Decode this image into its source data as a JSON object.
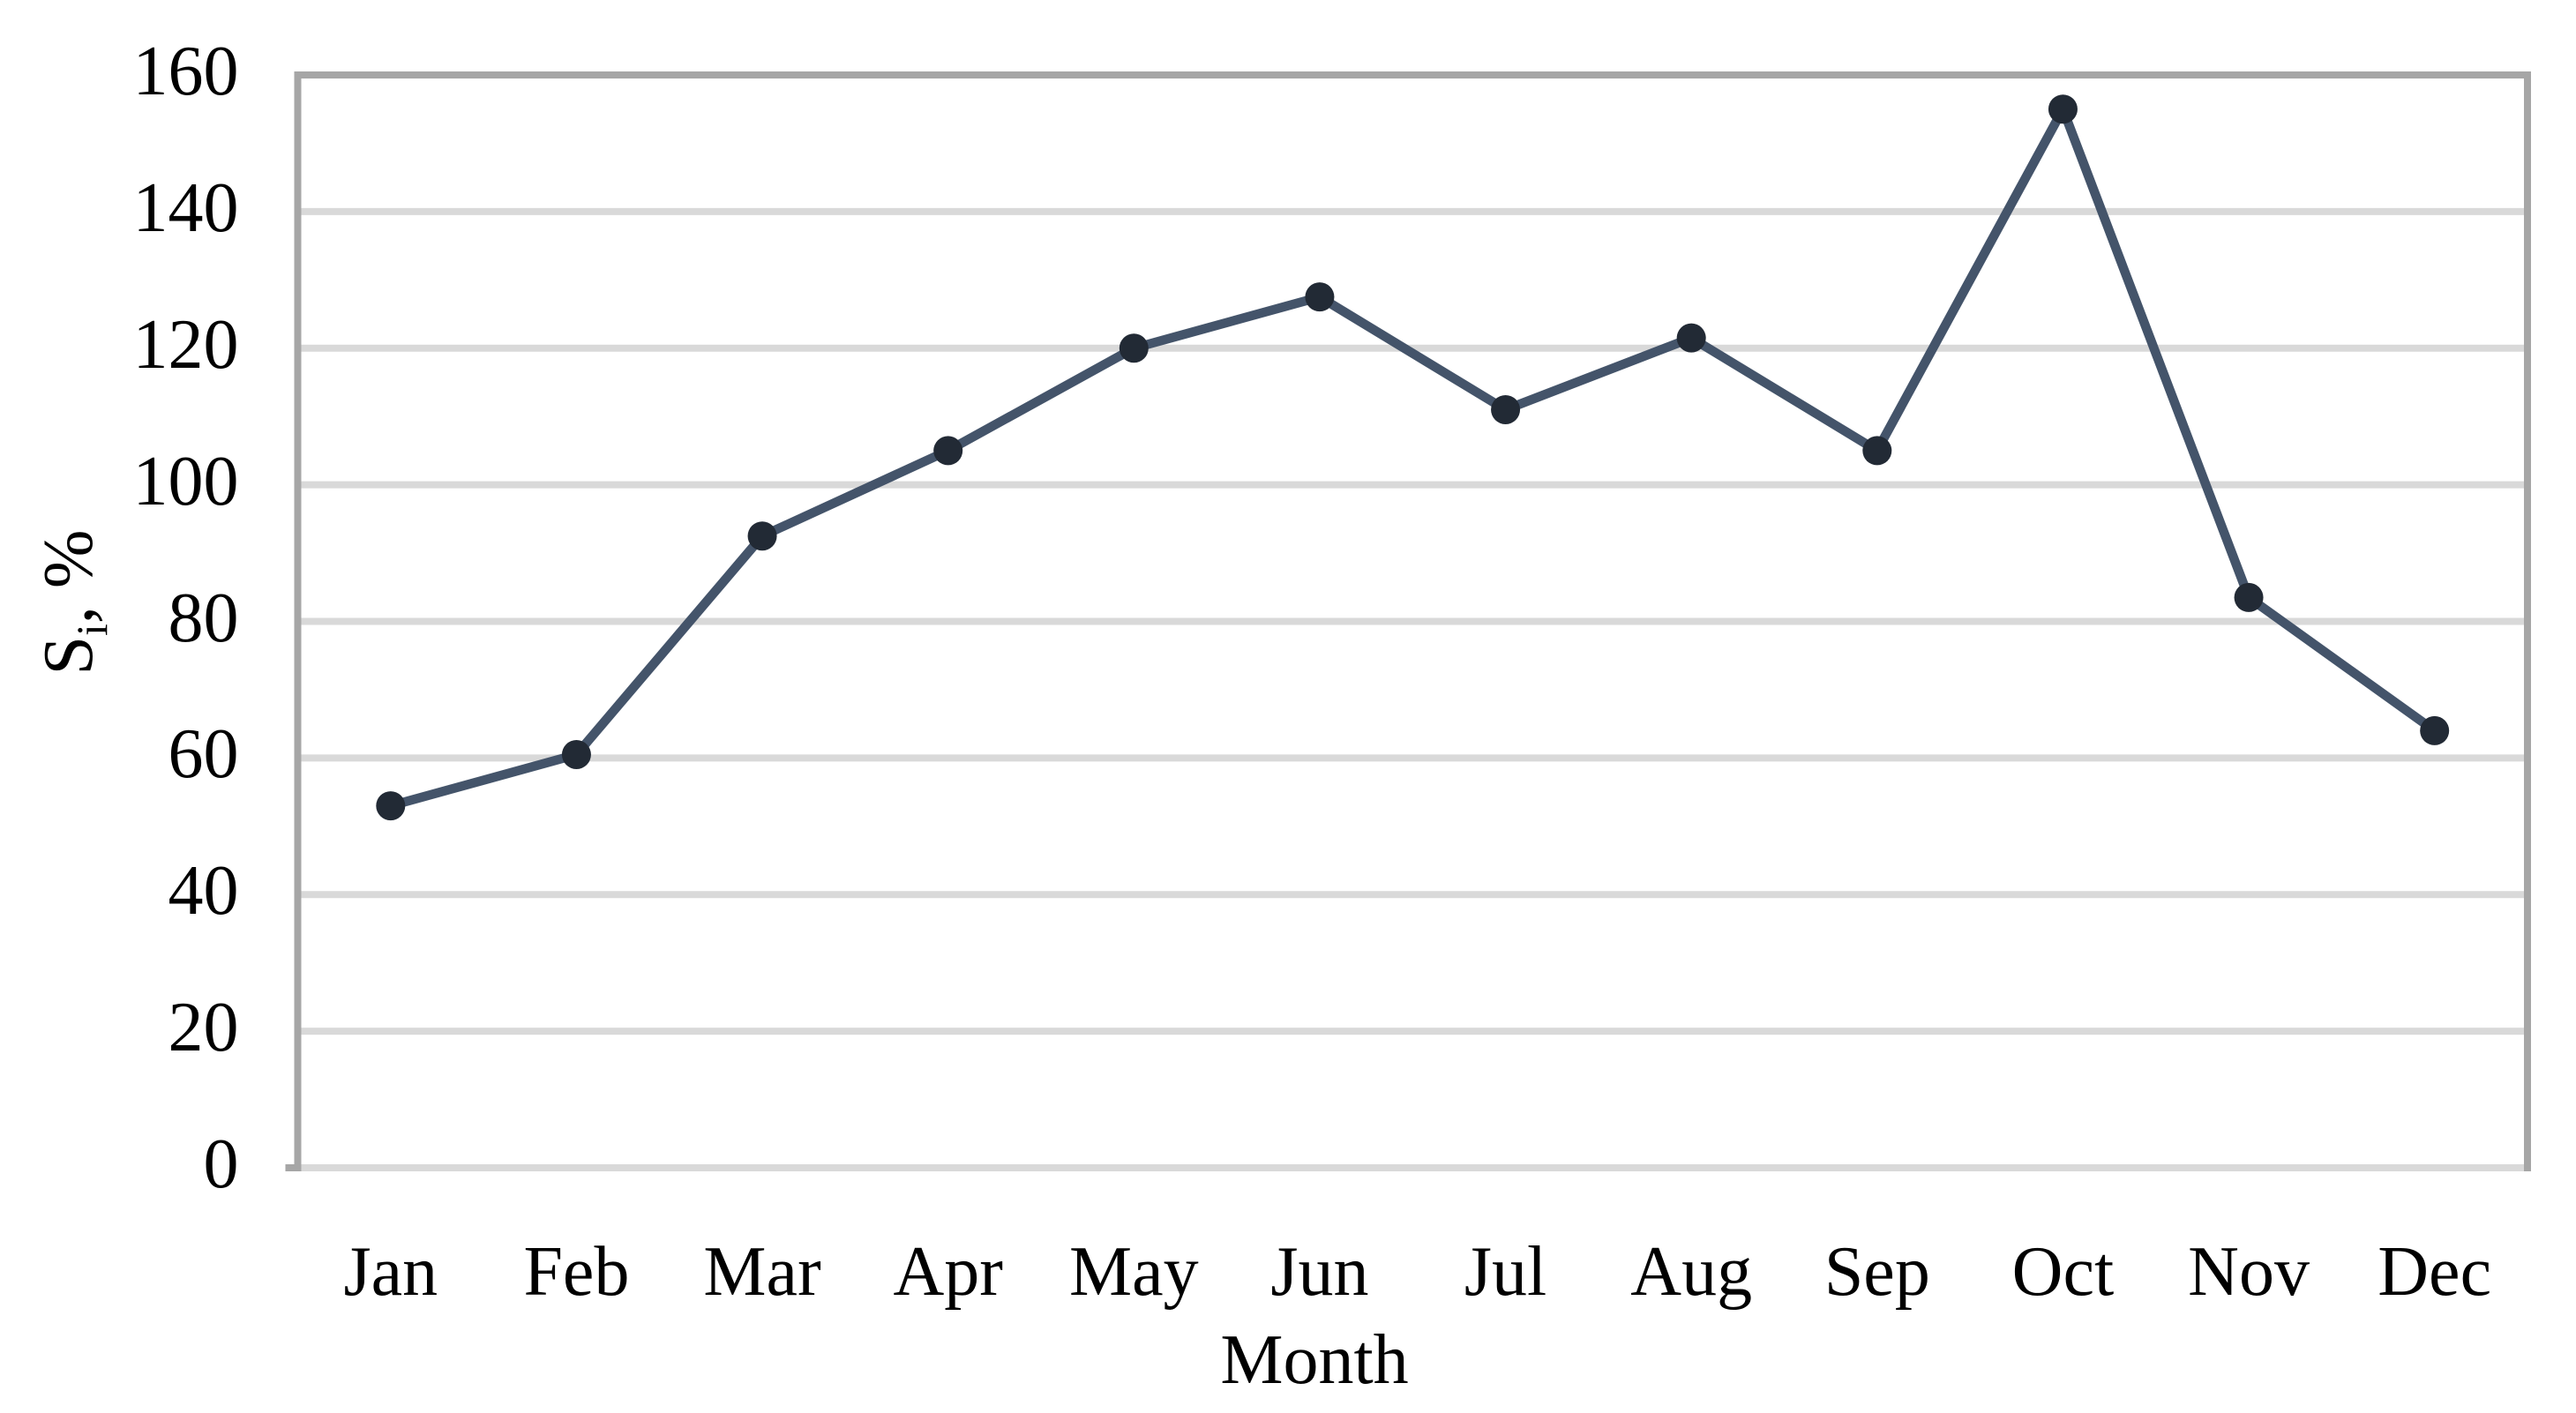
{
  "chart_data": {
    "type": "line",
    "title": "",
    "xlabel": "Month",
    "ylabel": "Si, %",
    "ylabel_parts": {
      "base": "S",
      "sub": "i",
      "rest": ", %"
    },
    "categories": [
      "Jan",
      "Feb",
      "Mar",
      "Apr",
      "May",
      "Jun",
      "Jul",
      "Aug",
      "Sep",
      "Oct",
      "Nov",
      "Dec"
    ],
    "series": [
      {
        "name": "Si",
        "values": [
          53,
          60.5,
          92.5,
          105,
          120,
          127.5,
          111,
          121.5,
          105,
          155,
          83.5,
          64
        ]
      }
    ],
    "ylim": [
      0,
      160
    ],
    "ytick_step": 20,
    "yticks": [
      "0",
      "20",
      "40",
      "60",
      "80",
      "100",
      "120",
      "140",
      "160"
    ],
    "grid": "horizontal",
    "legend": "none",
    "marker": "circle",
    "colors": {
      "line": "#44546a",
      "marker": "#222a35",
      "gridline": "#d9d9d9",
      "axis_border": "#a6a6a6",
      "text": "#000000",
      "background": "#ffffff"
    }
  }
}
